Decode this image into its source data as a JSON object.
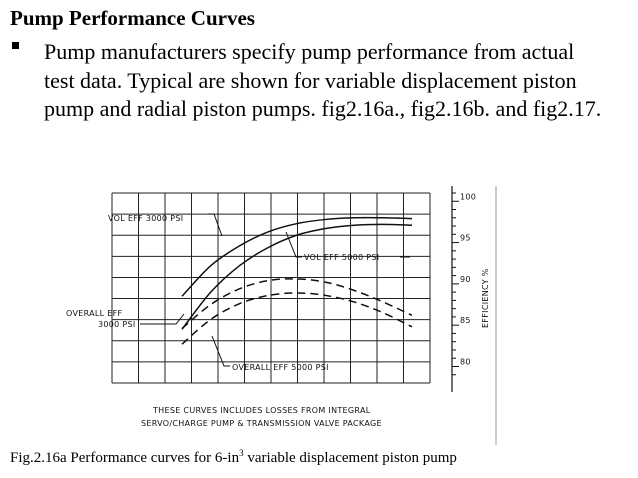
{
  "slide": {
    "title": "Pump Performance Curves",
    "bullet": "Pump manufacturers specify pump performance from actual test data. Typical are shown for variable displacement piston pump and radial piston pumps. fig2.16a., fig2.16b. and fig2.17.",
    "caption_pre": "Fig.2.16a Performance curves for 6-in",
    "caption_sup": "3",
    "caption_post": " variable displacement piston pump"
  },
  "chart_data": {
    "type": "line",
    "ylabel": "EFFICIENCY %",
    "ylim": [
      78,
      101
    ],
    "yticks": [
      80,
      85,
      90,
      95,
      100
    ],
    "grid": true,
    "series": [
      {
        "name": "VOL EFF 3000 PSI",
        "style": "solid",
        "points": [
          [
            0,
            88.5
          ],
          [
            1,
            92.2
          ],
          [
            2,
            94.6
          ],
          [
            3,
            96.3
          ],
          [
            4,
            97.3
          ],
          [
            5,
            97.8
          ],
          [
            6,
            98.0
          ],
          [
            7,
            98.0
          ],
          [
            8,
            97.9
          ]
        ]
      },
      {
        "name": "VOL EFF 5000 PSI",
        "style": "solid",
        "points": [
          [
            0,
            84.5
          ],
          [
            1,
            89.0
          ],
          [
            2,
            92.2
          ],
          [
            3,
            94.4
          ],
          [
            4,
            95.9
          ],
          [
            5,
            96.7
          ],
          [
            6,
            97.1
          ],
          [
            7,
            97.2
          ],
          [
            8,
            97.1
          ]
        ]
      },
      {
        "name": "OVERALL EFF 3000 PSI",
        "style": "dashed",
        "points": [
          [
            0,
            84.6
          ],
          [
            1,
            87.5
          ],
          [
            2,
            89.4
          ],
          [
            3,
            90.4
          ],
          [
            4,
            90.6
          ],
          [
            5,
            90.2
          ],
          [
            6,
            89.2
          ],
          [
            7,
            87.8
          ],
          [
            8,
            86.2
          ]
        ]
      },
      {
        "name": "OVERALL EFF 5000 PSI",
        "style": "dashed",
        "points": [
          [
            0,
            82.7
          ],
          [
            1,
            85.7
          ],
          [
            2,
            87.6
          ],
          [
            3,
            88.6
          ],
          [
            4,
            88.9
          ],
          [
            5,
            88.6
          ],
          [
            6,
            87.8
          ],
          [
            7,
            86.5
          ],
          [
            8,
            84.8
          ]
        ]
      }
    ],
    "note_lines": [
      "THESE CURVES INCLUDES LOSSES FROM INTEGRAL",
      "SERVO/CHARGE  PUMP  &  TRANSMISSION  VALVE  PACKAGE"
    ]
  }
}
